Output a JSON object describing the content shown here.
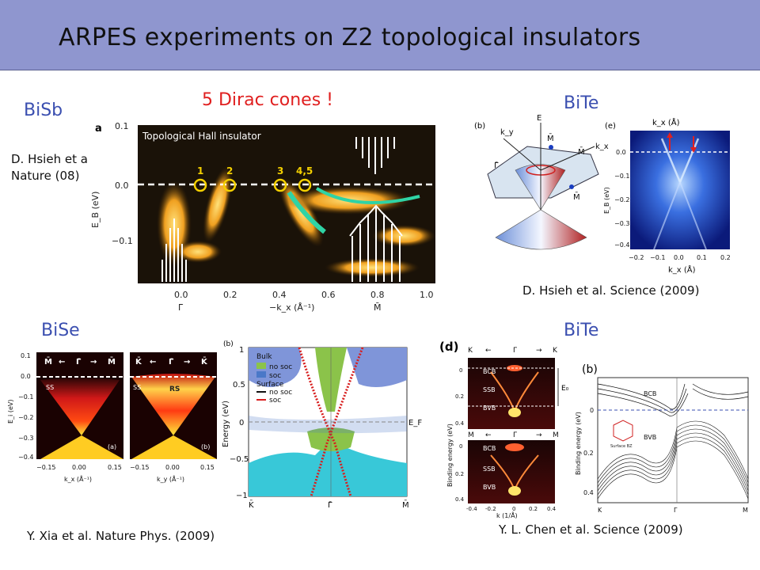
{
  "title": "ARPES experiments on Z2 topological insulators",
  "sections": {
    "bisb": "BiSb",
    "bite_top": "BiTe",
    "bise": "BiSe",
    "bite_bottom": "BiTe"
  },
  "dirac_note": "5 Dirac cones !",
  "citations": {
    "hsieh_nature_1": "D. Hsieh et al.",
    "hsieh_nature_2": "Nature (08)",
    "hsieh_science": "D. Hsieh et al. Science (2009)",
    "xia": "Y. Xia et al. Nature Phys. (2009)",
    "chen": "Y. L. Chen et al. Science (2009)"
  },
  "fig_bisb": {
    "panel_label": "a",
    "inset_title": "Topological Hall insulator",
    "ylabel": "E_B (eV)",
    "yticks": [
      "0.1",
      "0.0",
      "−0.1"
    ],
    "xticks": [
      "0.0",
      "0.2",
      "0.4",
      "0.6",
      "0.8",
      "1.0"
    ],
    "xlabel": "−k_x (Å⁻¹)",
    "xpoints": [
      "Γ̄",
      "M̄"
    ],
    "cone_labels": [
      "1",
      "2",
      "3",
      "4,5"
    ]
  },
  "fig_bite_top": {
    "panel_b": "(b)",
    "panel_e": "(e)",
    "axis_labels": [
      "E",
      "k_y",
      "k_x",
      "Γ̄",
      "M̄",
      "M̄",
      "M̄"
    ],
    "kx_title": "k_x (Å)",
    "ylabel": "E_B (eV)",
    "yticks": [
      "0.0",
      "−0.1",
      "−0.2",
      "−0.3",
      "−0.4"
    ],
    "xticks": [
      "−0.2",
      "−0.1",
      "0.0",
      "0.1",
      "0.2"
    ],
    "xlabel": "k_x (Å)"
  },
  "fig_bise": {
    "panel_a_header": [
      "M̄",
      "←",
      "Γ̄",
      "→",
      "M̄"
    ],
    "panel_b_header": [
      "K̄",
      "←",
      "Γ̄",
      "→",
      "K̄"
    ],
    "ylabel": "E_i (eV)",
    "yticks": [
      "0.1",
      "0.0",
      "−0.1",
      "−0.2",
      "−0.3",
      "−0.4"
    ],
    "xticks": [
      "−0.15",
      "0.00",
      "0.15"
    ],
    "xlabel_a": "k_x (Å⁻¹)",
    "xlabel_b": "k_y (Å⁻¹)",
    "ss": "SS",
    "rs": "RS",
    "label_a": "(a)",
    "label_b": "(b)"
  },
  "fig_band": {
    "panel_label": "(b)",
    "ylabel": "Energy (eV)",
    "yticks": [
      "1",
      "0.5",
      "0",
      "−0.5",
      "−1"
    ],
    "xpoints": [
      "K̄",
      "Γ̄",
      "M̄"
    ],
    "ef": "E_F",
    "legend_bulk": "Bulk",
    "legend_nosoc": "no soc",
    "legend_soc": "soc",
    "legend_surface": "Surface",
    "legend_nosoc2": "no soc",
    "legend_soc2": "soc"
  },
  "fig_bite_bottom": {
    "panel_d": "(d)",
    "panel_b": "(b)",
    "top_header": [
      "K",
      "←",
      "Γ",
      "→",
      "K"
    ],
    "mid_header": [
      "M",
      "←",
      "Γ",
      "→",
      "M"
    ],
    "ylabel": "Binding energy (eV)",
    "labels_top": [
      "BCB",
      "SSB",
      "BVB"
    ],
    "labels_mid": [
      "BCB",
      "SSB",
      "BVB"
    ],
    "e0": "E₀",
    "xlabel": "k (1/Å)",
    "yticks": [
      "0",
      "0.2",
      "0.4"
    ],
    "xticks": [
      "-0.4",
      "-0.2",
      "0",
      "0.2",
      "0.4"
    ],
    "right_ylabel": "Binding energy (eV)",
    "right_bcb": "BCB",
    "right_bvb": "BVB",
    "right_xpoints": [
      "K",
      "Γ",
      "M"
    ],
    "right_yticks": [
      "0",
      "0.2",
      "0.4"
    ],
    "surface_bz": "Surface BZ"
  }
}
